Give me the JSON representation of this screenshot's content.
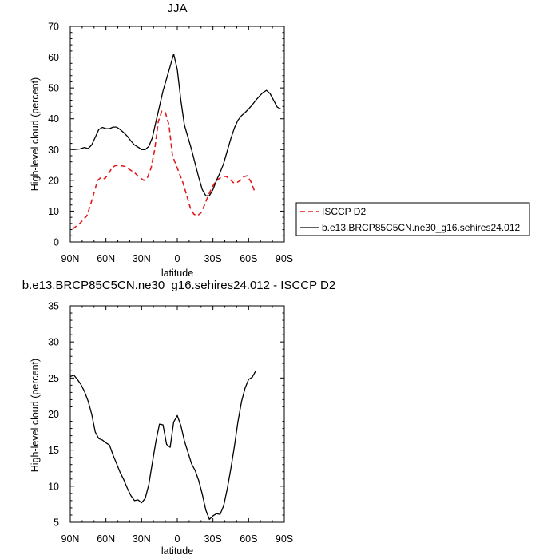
{
  "chart_data": [
    {
      "type": "line",
      "title": "JJA",
      "xlabel": "latitude",
      "ylabel": "High-level cloud (percent)",
      "xlim": [
        90,
        -90
      ],
      "ylim": [
        0,
        70
      ],
      "x_ticks": [
        90,
        60,
        30,
        0,
        -30,
        -60,
        -90
      ],
      "x_tick_labels": [
        "90N",
        "60N",
        "30N",
        "0",
        "30S",
        "60S",
        "90S"
      ],
      "y_ticks": [
        0,
        10,
        20,
        30,
        40,
        50,
        60,
        70
      ],
      "y_tick_labels": [
        "0",
        "10",
        "20",
        "30",
        "40",
        "50",
        "60",
        "70"
      ],
      "legend_position": "right",
      "series": [
        {
          "name": "ISCCP D2",
          "color": "#e41a1c",
          "dash": "dashed",
          "x": [
            88,
            82,
            76,
            73,
            70,
            67,
            64,
            61,
            58,
            55,
            52,
            48,
            44,
            40,
            36,
            32,
            28,
            25,
            22,
            19,
            16,
            13,
            10,
            7,
            4,
            1,
            -2,
            -5,
            -8,
            -11,
            -14,
            -17,
            -20,
            -23,
            -26,
            -29,
            -32,
            -35,
            -38,
            -41,
            -44,
            -47,
            -50,
            -53,
            -56,
            -59,
            -62,
            -65
          ],
          "y": [
            4.2,
            6.0,
            8.5,
            12,
            16,
            20,
            21,
            20.5,
            22,
            24,
            24.8,
            24.8,
            24.5,
            23.5,
            22.5,
            21,
            20,
            21,
            24,
            30,
            39,
            42.5,
            42,
            38,
            28,
            25,
            22,
            19,
            15,
            11,
            9,
            8.5,
            9.5,
            12,
            15,
            17.5,
            19.5,
            20.5,
            21.2,
            21.3,
            20.5,
            19.3,
            19.2,
            20,
            21.2,
            21.5,
            19.5,
            16.5
          ]
        },
        {
          "name": "b.e13.BRCP85C5CN.ne30_g16.sehires24.012",
          "color": "#000000",
          "dash": "solid",
          "x": [
            88,
            82,
            78,
            75,
            72,
            69,
            66,
            63,
            60,
            57,
            54,
            51,
            48,
            45,
            42,
            39,
            36,
            33,
            30,
            27,
            24,
            21,
            18,
            15,
            12,
            9,
            6,
            3,
            0,
            -3,
            -6,
            -9,
            -12,
            -15,
            -18,
            -21,
            -24,
            -27,
            -30,
            -33,
            -36,
            -39,
            -42,
            -45,
            -48,
            -51,
            -54,
            -57,
            -60,
            -63,
            -66,
            -69,
            -72,
            -75,
            -78,
            -81,
            -84,
            -87
          ],
          "y": [
            30,
            30.2,
            30.7,
            30.3,
            31.5,
            34,
            36.5,
            37.2,
            36.8,
            36.8,
            37.3,
            37.3,
            36.5,
            35.5,
            34.3,
            32.8,
            31.5,
            30.8,
            30,
            30,
            31,
            33.8,
            39,
            44,
            49,
            53,
            57,
            61,
            56,
            46,
            38,
            34,
            30,
            25.5,
            21,
            17,
            15,
            15,
            17,
            20,
            22.5,
            25.5,
            29.5,
            33.5,
            37,
            39.5,
            41,
            42,
            43.2,
            44.5,
            46,
            47.3,
            48.5,
            49.2,
            48.2,
            46,
            43.8,
            43.2
          ]
        }
      ]
    },
    {
      "type": "line",
      "title": "b.e13.BRCP85C5CN.ne30_g16.sehires24.012 - ISCCP D2",
      "xlabel": "latitude",
      "ylabel": "High-level cloud (percent)",
      "xlim": [
        90,
        -90
      ],
      "ylim": [
        5,
        35
      ],
      "x_ticks": [
        90,
        60,
        30,
        0,
        -30,
        -60,
        -90
      ],
      "x_tick_labels": [
        "90N",
        "60N",
        "30N",
        "0",
        "30S",
        "60S",
        "90S"
      ],
      "y_ticks": [
        5,
        10,
        15,
        20,
        25,
        30,
        35
      ],
      "y_tick_labels": [
        "5",
        "10",
        "15",
        "20",
        "25",
        "30",
        "35"
      ],
      "series": [
        {
          "color": "#000000",
          "dash": "solid",
          "x": [
            90,
            87,
            84,
            81,
            78,
            75,
            72,
            69,
            66,
            63,
            60,
            57,
            54,
            51,
            48,
            45,
            42,
            39,
            36,
            33,
            30,
            27,
            24,
            21,
            18,
            15,
            12,
            9,
            6,
            3,
            0,
            -3,
            -6,
            -9,
            -12,
            -15,
            -18,
            -21,
            -24,
            -27,
            -30,
            -33,
            -36,
            -39,
            -42,
            -45,
            -48,
            -51,
            -54,
            -57,
            -60,
            -63,
            -66
          ],
          "y": [
            25.2,
            25.4,
            24.8,
            24.1,
            23.1,
            21.8,
            20,
            17.5,
            16.6,
            16.4,
            16,
            15.7,
            14.3,
            13.1,
            11.9,
            10.9,
            9.7,
            8.7,
            8,
            8.1,
            7.7,
            8.3,
            10.2,
            13.2,
            16.2,
            18.6,
            18.5,
            15.8,
            15.4,
            18.9,
            19.8,
            18.4,
            16.3,
            14.7,
            13.1,
            12.2,
            10.8,
            8.9,
            6.7,
            5.4,
            5.9,
            6.2,
            6.1,
            7.3,
            9.6,
            12.4,
            15.5,
            18.9,
            21.7,
            23.6,
            24.8,
            25.1,
            26
          ]
        }
      ]
    }
  ]
}
